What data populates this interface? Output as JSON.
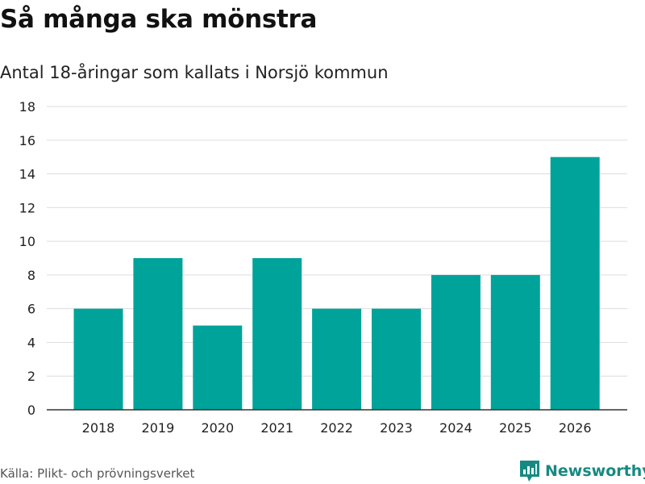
{
  "header": {
    "title": "Så många ska mönstra",
    "subtitle": "Antal 18-åringar som kallats i Norsjö kommun"
  },
  "footer": {
    "source": "Källa: Plikt- och prövningsverket",
    "brand": "Newsworthy"
  },
  "colors": {
    "bar": "#00a39a",
    "grid": "#dddddd",
    "axis": "#333333",
    "brand": "#168a82"
  },
  "chart_data": {
    "type": "bar",
    "title": "Så många ska mönstra",
    "subtitle": "Antal 18-åringar som kallats i Norsjö kommun",
    "xlabel": "",
    "ylabel": "",
    "categories": [
      "2018",
      "2019",
      "2020",
      "2021",
      "2022",
      "2023",
      "2024",
      "2025",
      "2026"
    ],
    "values": [
      6,
      9,
      5,
      9,
      6,
      6,
      8,
      8,
      15
    ],
    "ylim": [
      0,
      18
    ],
    "yticks": [
      0,
      2,
      4,
      6,
      8,
      10,
      12,
      14,
      16,
      18
    ],
    "grid": true,
    "legend": "none"
  }
}
